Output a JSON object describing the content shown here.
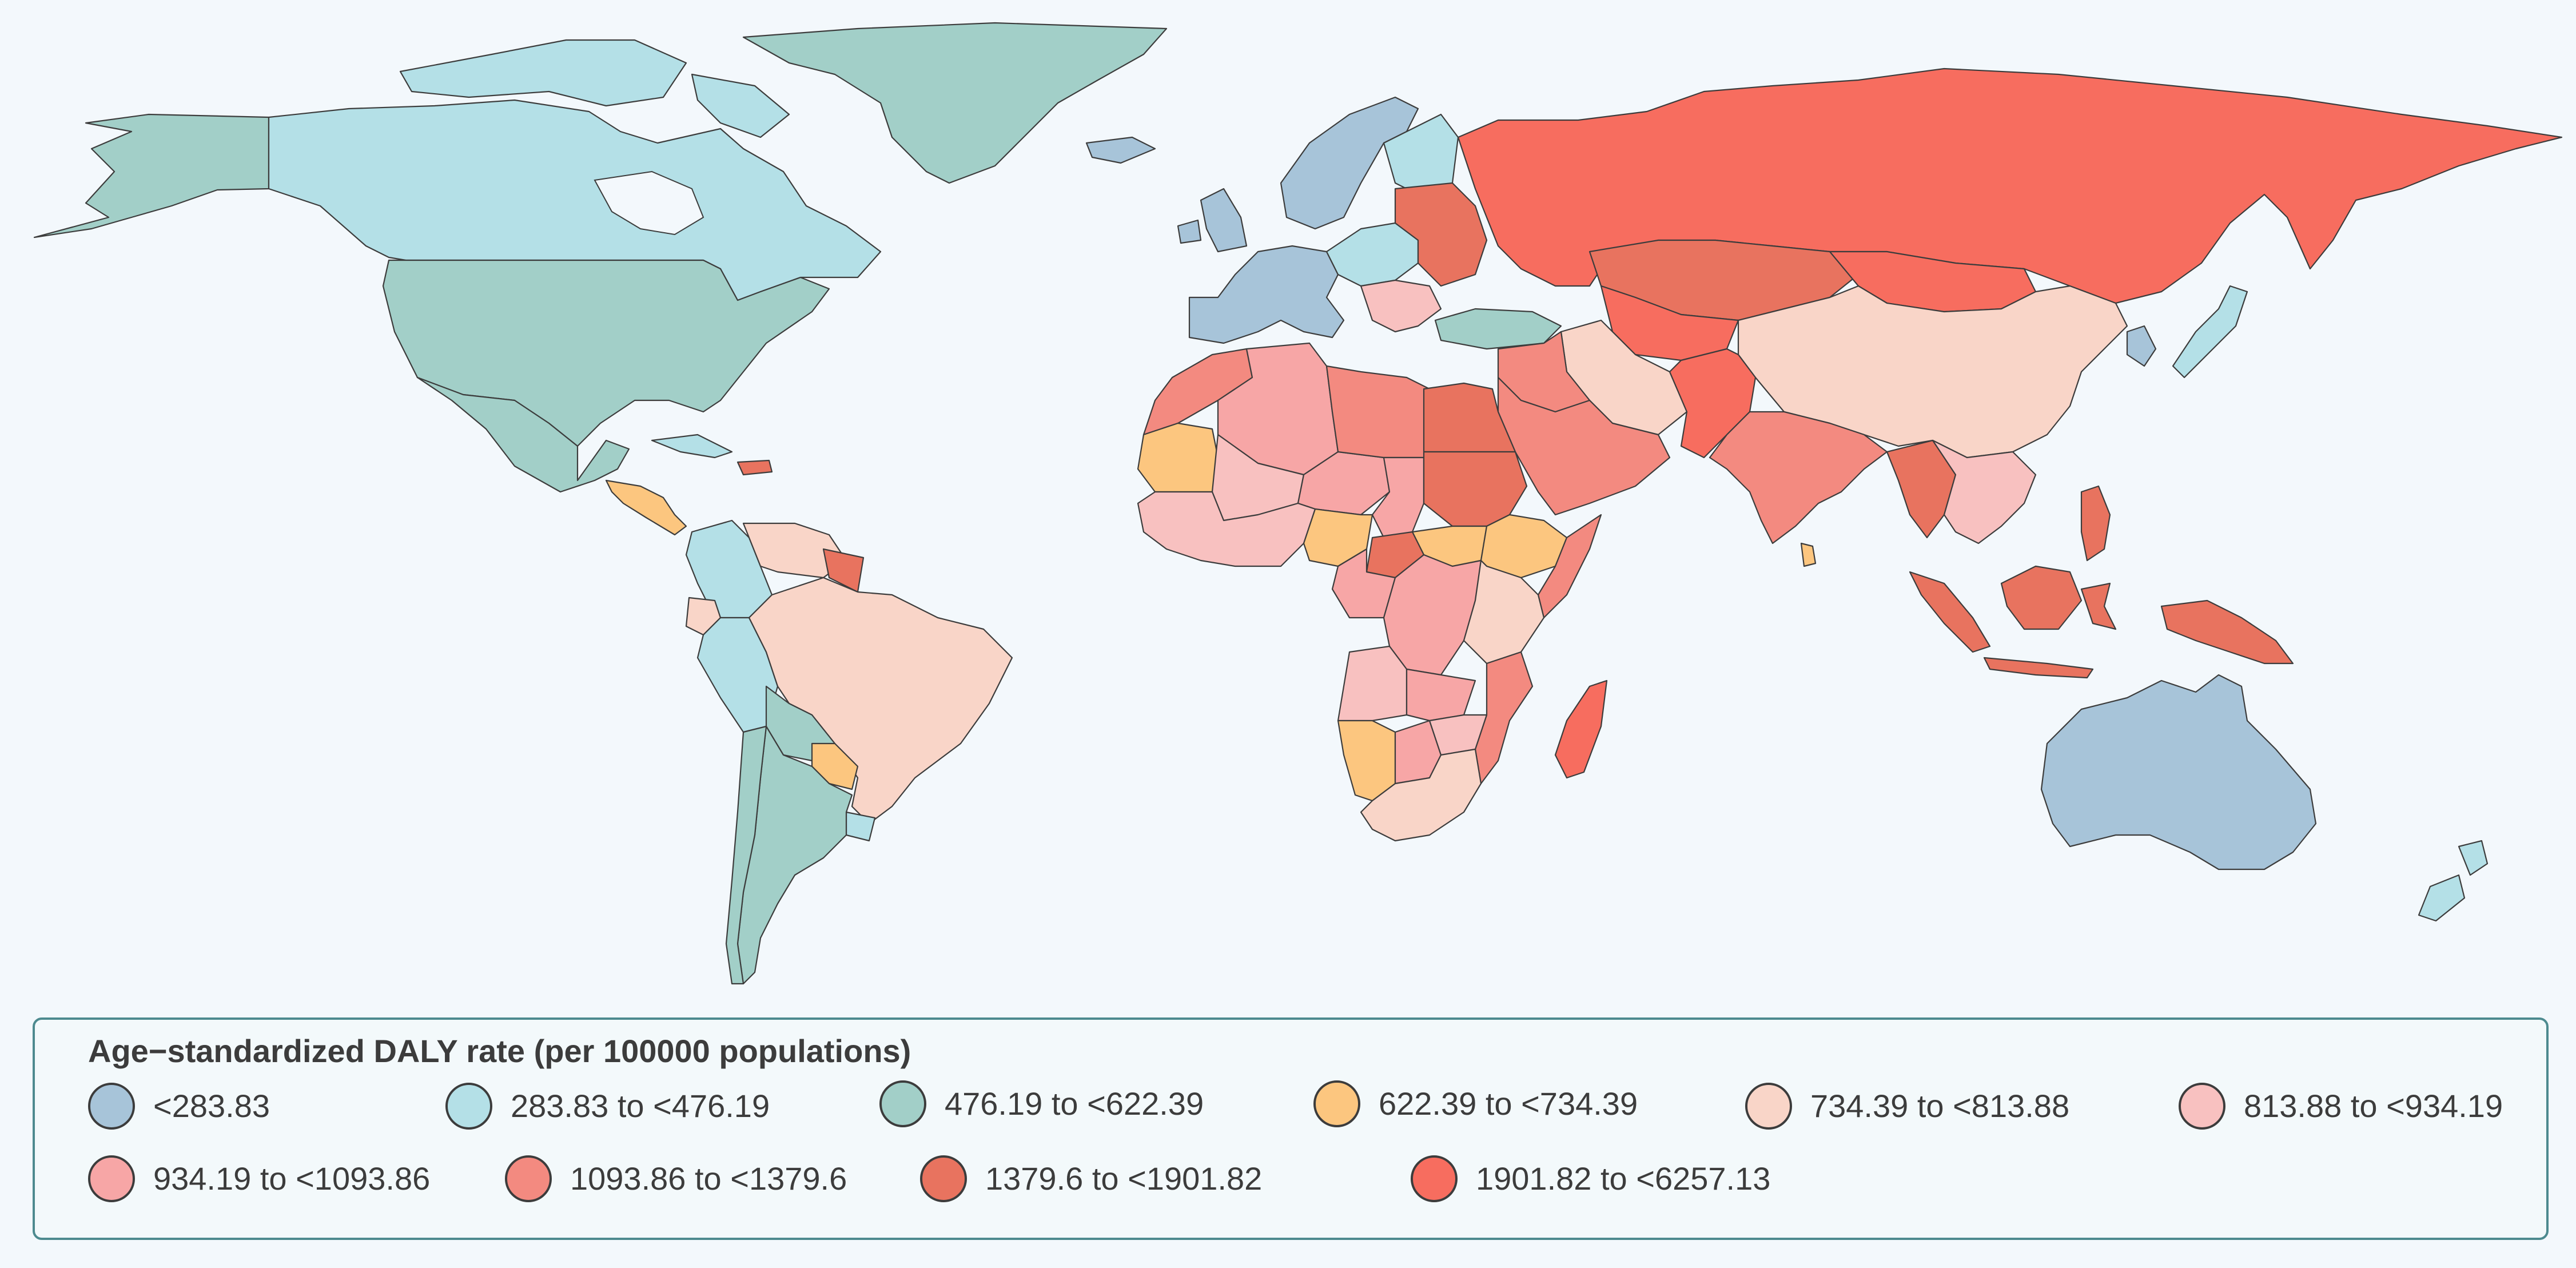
{
  "legend": {
    "title": "Age−standardized DALY rate (per 100000 populations)",
    "items": [
      {
        "label": "<283.83",
        "color": "#a7c4d9"
      },
      {
        "label": "283.83 to <476.19",
        "color": "#b4e0e7"
      },
      {
        "label": "476.19 to <622.39",
        "color": "#a2cfc8"
      },
      {
        "label": "622.39 to <734.39",
        "color": "#fcc67f"
      },
      {
        "label": "734.39 to <813.88",
        "color": "#f9d5c8"
      },
      {
        "label": "813.88 to <934.19",
        "color": "#f8c1c0"
      },
      {
        "label": "934.19 to <1093.86",
        "color": "#f7a6a6"
      },
      {
        "label": "1093.86 to <1379.6",
        "color": "#f38a80"
      },
      {
        "label": "1379.6 to <1901.82",
        "color": "#e8735f"
      },
      {
        "label": "1901.82 to <6257.13",
        "color": "#f76d5f"
      }
    ]
  },
  "map": {
    "ocean_color": "#f3f8fc",
    "border_color": "#3c3c3c",
    "regions": [
      {
        "name": "Alaska",
        "bin": 2
      },
      {
        "name": "Canada",
        "bin": 1
      },
      {
        "name": "Greenland",
        "bin": 2
      },
      {
        "name": "United States",
        "bin": 2
      },
      {
        "name": "Mexico",
        "bin": 2
      },
      {
        "name": "Central America",
        "bin": 3
      },
      {
        "name": "Cuba",
        "bin": 1
      },
      {
        "name": "Hispaniola",
        "bin": 8
      },
      {
        "name": "Colombia",
        "bin": 1
      },
      {
        "name": "Venezuela",
        "bin": 4
      },
      {
        "name": "Guyana",
        "bin": 8
      },
      {
        "name": "Ecuador",
        "bin": 4
      },
      {
        "name": "Peru",
        "bin": 1
      },
      {
        "name": "Brazil",
        "bin": 4
      },
      {
        "name": "Bolivia",
        "bin": 2
      },
      {
        "name": "Paraguay",
        "bin": 3
      },
      {
        "name": "Argentina",
        "bin": 2
      },
      {
        "name": "Chile",
        "bin": 2
      },
      {
        "name": "Uruguay",
        "bin": 1
      },
      {
        "name": "Iceland",
        "bin": 0
      },
      {
        "name": "UK and Ireland",
        "bin": 0
      },
      {
        "name": "Scandinavia",
        "bin": 0
      },
      {
        "name": "Finland",
        "bin": 1
      },
      {
        "name": "Western Europe",
        "bin": 0
      },
      {
        "name": "Central Europe",
        "bin": 1
      },
      {
        "name": "Eastern Europe",
        "bin": 8
      },
      {
        "name": "Balkans",
        "bin": 5
      },
      {
        "name": "Turkey",
        "bin": 2
      },
      {
        "name": "Russia",
        "bin": 9
      },
      {
        "name": "Kazakhstan",
        "bin": 8
      },
      {
        "name": "Central Asia",
        "bin": 9
      },
      {
        "name": "Mongolia",
        "bin": 9
      },
      {
        "name": "China",
        "bin": 4
      },
      {
        "name": "Korea",
        "bin": 0
      },
      {
        "name": "Japan",
        "bin": 1
      },
      {
        "name": "Iran",
        "bin": 4
      },
      {
        "name": "Afghanistan and Pakistan",
        "bin": 9
      },
      {
        "name": "Arabian Peninsula",
        "bin": 7
      },
      {
        "name": "Iraq and Syria",
        "bin": 7
      },
      {
        "name": "India",
        "bin": 7
      },
      {
        "name": "Myanmar",
        "bin": 8
      },
      {
        "name": "Indochina",
        "bin": 5
      },
      {
        "name": "Sri Lanka",
        "bin": 3
      },
      {
        "name": "Maritime Southeast Asia",
        "bin": 8
      },
      {
        "name": "Philippines",
        "bin": 8
      },
      {
        "name": "Papua New Guinea",
        "bin": 8
      },
      {
        "name": "Australia",
        "bin": 0
      },
      {
        "name": "New Zealand",
        "bin": 1
      },
      {
        "name": "Morocco",
        "bin": 7
      },
      {
        "name": "Algeria",
        "bin": 6
      },
      {
        "name": "Mauritania",
        "bin": 3
      },
      {
        "name": "Mali",
        "bin": 5
      },
      {
        "name": "Niger",
        "bin": 6
      },
      {
        "name": "Libya",
        "bin": 7
      },
      {
        "name": "Egypt",
        "bin": 8
      },
      {
        "name": "Chad",
        "bin": 6
      },
      {
        "name": "Sudan",
        "bin": 8
      },
      {
        "name": "Ethiopia",
        "bin": 3
      },
      {
        "name": "South Sudan",
        "bin": 3
      },
      {
        "name": "Somalia",
        "bin": 7
      },
      {
        "name": "West Africa",
        "bin": 5
      },
      {
        "name": "Nigeria",
        "bin": 3
      },
      {
        "name": "Central African Republic",
        "bin": 8
      },
      {
        "name": "Central Africa",
        "bin": 6
      },
      {
        "name": "DR Congo",
        "bin": 6
      },
      {
        "name": "East Africa",
        "bin": 4
      },
      {
        "name": "Angola",
        "bin": 5
      },
      {
        "name": "Zambia",
        "bin": 6
      },
      {
        "name": "Mozambique",
        "bin": 7
      },
      {
        "name": "Namibia",
        "bin": 3
      },
      {
        "name": "Botswana",
        "bin": 6
      },
      {
        "name": "Zimbabwe",
        "bin": 5
      },
      {
        "name": "South Africa",
        "bin": 4
      },
      {
        "name": "Madagascar",
        "bin": 9
      }
    ]
  }
}
